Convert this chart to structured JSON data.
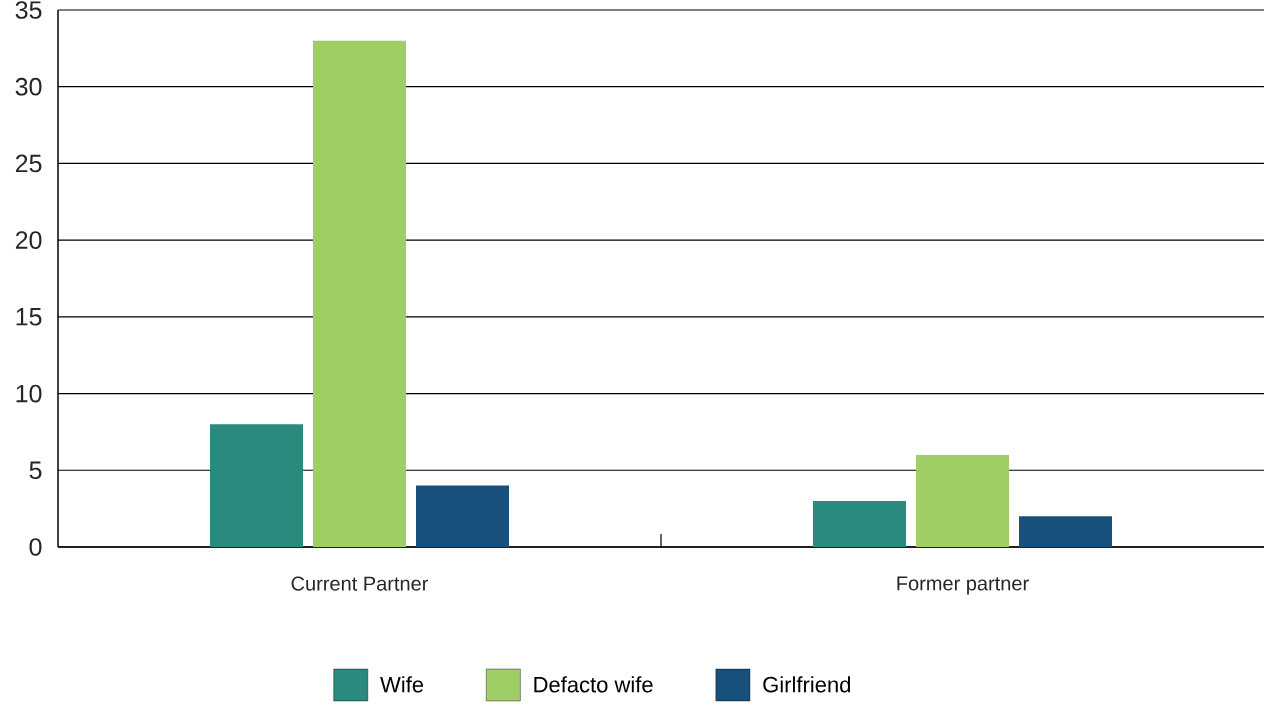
{
  "chart_data": {
    "type": "bar",
    "categories": [
      "Current Partner",
      "Former partner"
    ],
    "series": [
      {
        "name": "Wife",
        "color": "#2b8a7e",
        "values": [
          8,
          3
        ]
      },
      {
        "name": "Defacto wife",
        "color": "#9fce66",
        "values": [
          33,
          6
        ]
      },
      {
        "name": "Girlfriend",
        "color": "#17507c",
        "values": [
          4,
          2
        ]
      }
    ],
    "ylim": [
      0,
      35
    ],
    "yticks": [
      0,
      5,
      10,
      15,
      20,
      25,
      30,
      35
    ],
    "grid": "y",
    "legend": "bottom"
  }
}
